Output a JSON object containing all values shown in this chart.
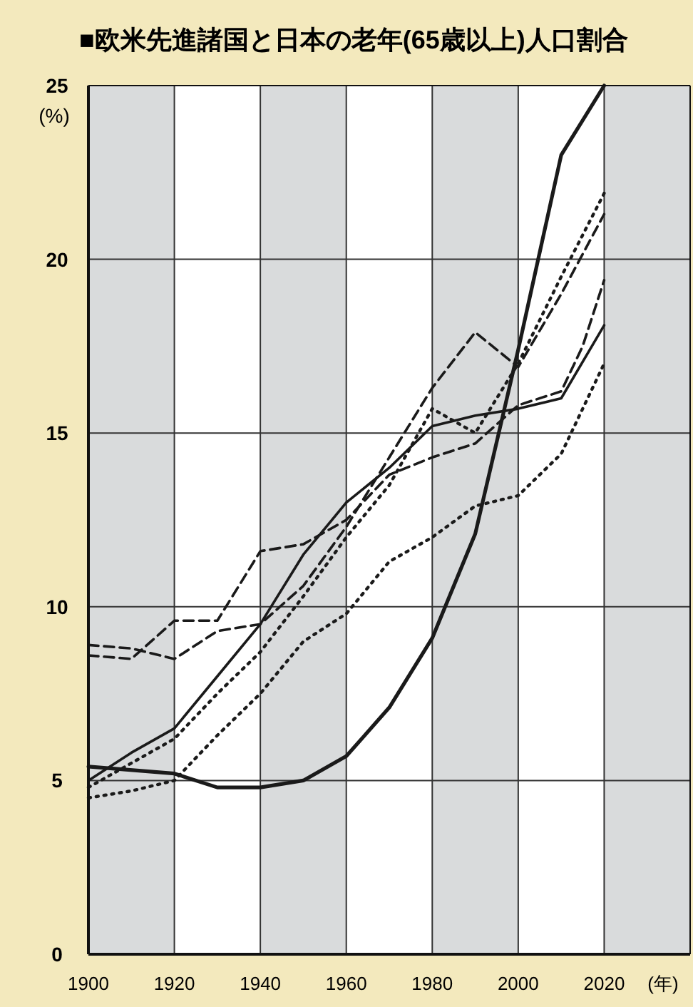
{
  "chart_data": {
    "type": "line",
    "title": "■欧米先進諸国と日本の老年(65歳以上)人口割合",
    "ylabel": "(%)",
    "xlabel": "(年)",
    "xlim": [
      1900,
      2040
    ],
    "xticks": [
      1900,
      1920,
      1940,
      1960,
      1980,
      2000,
      2020
    ],
    "ylim": [
      0,
      25
    ],
    "yticks": [
      0,
      5,
      10,
      15,
      20,
      25
    ],
    "grid": true,
    "bands": [
      {
        "axis": "x",
        "from": 1900,
        "to": 1920,
        "color": "#d9dbdc"
      },
      {
        "axis": "x",
        "from": 1940,
        "to": 1960,
        "color": "#d9dbdc"
      },
      {
        "axis": "x",
        "from": 1980,
        "to": 2000,
        "color": "#d9dbdc"
      },
      {
        "axis": "x",
        "from": 2020,
        "to": 2040,
        "color": "#d9dbdc"
      }
    ],
    "series": [
      {
        "color": "#1a1a1a",
        "line_style": "solid",
        "x": [
          1900,
          1920,
          1930,
          1940,
          1950,
          1960,
          1970,
          1980,
          1990,
          2000,
          2010,
          2020
        ],
        "values": [
          5.4,
          5.2,
          4.8,
          4.8,
          5.0,
          5.7,
          7.1,
          9.1,
          12.1,
          17.4,
          23.0,
          25
        ]
      },
      {
        "color": "#1a1a1a",
        "line_style": "dashed",
        "x": [
          1900,
          1910,
          1920,
          1930,
          1940,
          1950,
          1960,
          1970,
          1980,
          1990,
          2000,
          2010,
          2015,
          2020
        ],
        "values": [
          8.6,
          8.5,
          9.6,
          9.6,
          11.6,
          11.8,
          12.5,
          13.8,
          14.3,
          14.7,
          15.8,
          16.2,
          17.5,
          19.4
        ]
      },
      {
        "color": "#1a1a1a",
        "line_style": "dashed",
        "x": [
          1900,
          1910,
          1920,
          1930,
          1940,
          1950,
          1960,
          1970,
          1980,
          1990,
          1995,
          2000,
          2010,
          2020
        ],
        "values": [
          8.9,
          8.8,
          8.5,
          9.3,
          9.5,
          10.6,
          12.3,
          14.3,
          16.3,
          17.9,
          17.4,
          16.9,
          19.0,
          21.3
        ]
      },
      {
        "color": "#1a1a1a",
        "line_style": "solid",
        "x": [
          1900,
          1910,
          1920,
          1930,
          1940,
          1950,
          1960,
          1970,
          1980,
          1990,
          2000,
          2010,
          2020
        ],
        "values": [
          5.0,
          5.8,
          6.5,
          8.0,
          9.5,
          11.5,
          13.0,
          14.0,
          15.2,
          15.5,
          15.7,
          16.0,
          18.1
        ]
      },
      {
        "color": "#1a1a1a",
        "line_style": "dotted",
        "x": [
          1900,
          1910,
          1920,
          1930,
          1940,
          1950,
          1960,
          1970,
          1980,
          1990,
          2000,
          2010,
          2020
        ],
        "values": [
          4.8,
          5.5,
          6.2,
          7.5,
          8.7,
          10.3,
          12.0,
          13.5,
          15.7,
          15.0,
          17.0,
          19.5,
          21.9
        ]
      },
      {
        "color": "#1a1a1a",
        "line_style": "dotted",
        "x": [
          1900,
          1910,
          1920,
          1930,
          1940,
          1950,
          1960,
          1970,
          1980,
          1990,
          2000,
          2010,
          2020
        ],
        "values": [
          4.5,
          4.7,
          5.0,
          6.3,
          7.5,
          9.0,
          9.8,
          11.3,
          12.0,
          12.9,
          13.2,
          14.4,
          17.0
        ]
      }
    ]
  }
}
